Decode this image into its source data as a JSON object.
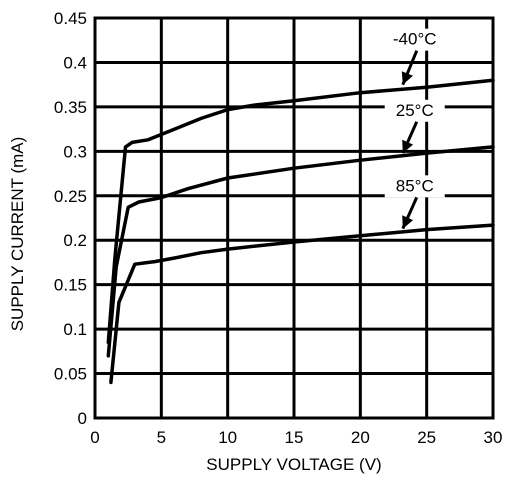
{
  "chart_data": {
    "type": "line",
    "title": "",
    "xlabel": "SUPPLY VOLTAGE (V)",
    "ylabel": "SUPPLY CURRENT  (mA)",
    "xlim": [
      0,
      30
    ],
    "ylim": [
      0,
      0.45
    ],
    "xticks": [
      "0",
      "5",
      "10",
      "15",
      "20",
      "25",
      "30"
    ],
    "yticks": [
      "0",
      "0.05",
      "0.1",
      "0.15",
      "0.2",
      "0.25",
      "0.3",
      "0.35",
      "0.4",
      "0.45"
    ],
    "grid": true,
    "series": [
      {
        "name": "-40°C",
        "x": [
          1.0,
          1.5,
          2.3,
          2.8,
          4.0,
          6,
          8,
          10,
          12,
          15,
          20,
          25,
          30
        ],
        "y": [
          0.085,
          0.18,
          0.305,
          0.31,
          0.313,
          0.325,
          0.337,
          0.347,
          0.352,
          0.357,
          0.366,
          0.372,
          0.38
        ]
      },
      {
        "name": "25°C",
        "x": [
          1.0,
          1.6,
          2.5,
          3.3,
          5.0,
          7,
          10,
          15,
          20,
          25,
          30
        ],
        "y": [
          0.07,
          0.17,
          0.237,
          0.243,
          0.248,
          0.258,
          0.27,
          0.281,
          0.29,
          0.298,
          0.305
        ]
      },
      {
        "name": "85°C",
        "x": [
          1.2,
          1.8,
          3.0,
          4.5,
          6,
          8,
          10,
          15,
          20,
          25,
          30
        ],
        "y": [
          0.04,
          0.13,
          0.173,
          0.176,
          0.18,
          0.186,
          0.19,
          0.198,
          0.205,
          0.212,
          0.217
        ]
      }
    ],
    "annotations": [
      {
        "text": "-40°C",
        "x": 24.1,
        "y": 0.42,
        "arrow_to": [
          23.2,
          0.375
        ]
      },
      {
        "text": "25°C",
        "x": 24.1,
        "y": 0.34,
        "arrow_to": [
          23.2,
          0.298
        ]
      },
      {
        "text": "85°C",
        "x": 24.1,
        "y": 0.255,
        "arrow_to": [
          23.2,
          0.213
        ]
      }
    ]
  }
}
